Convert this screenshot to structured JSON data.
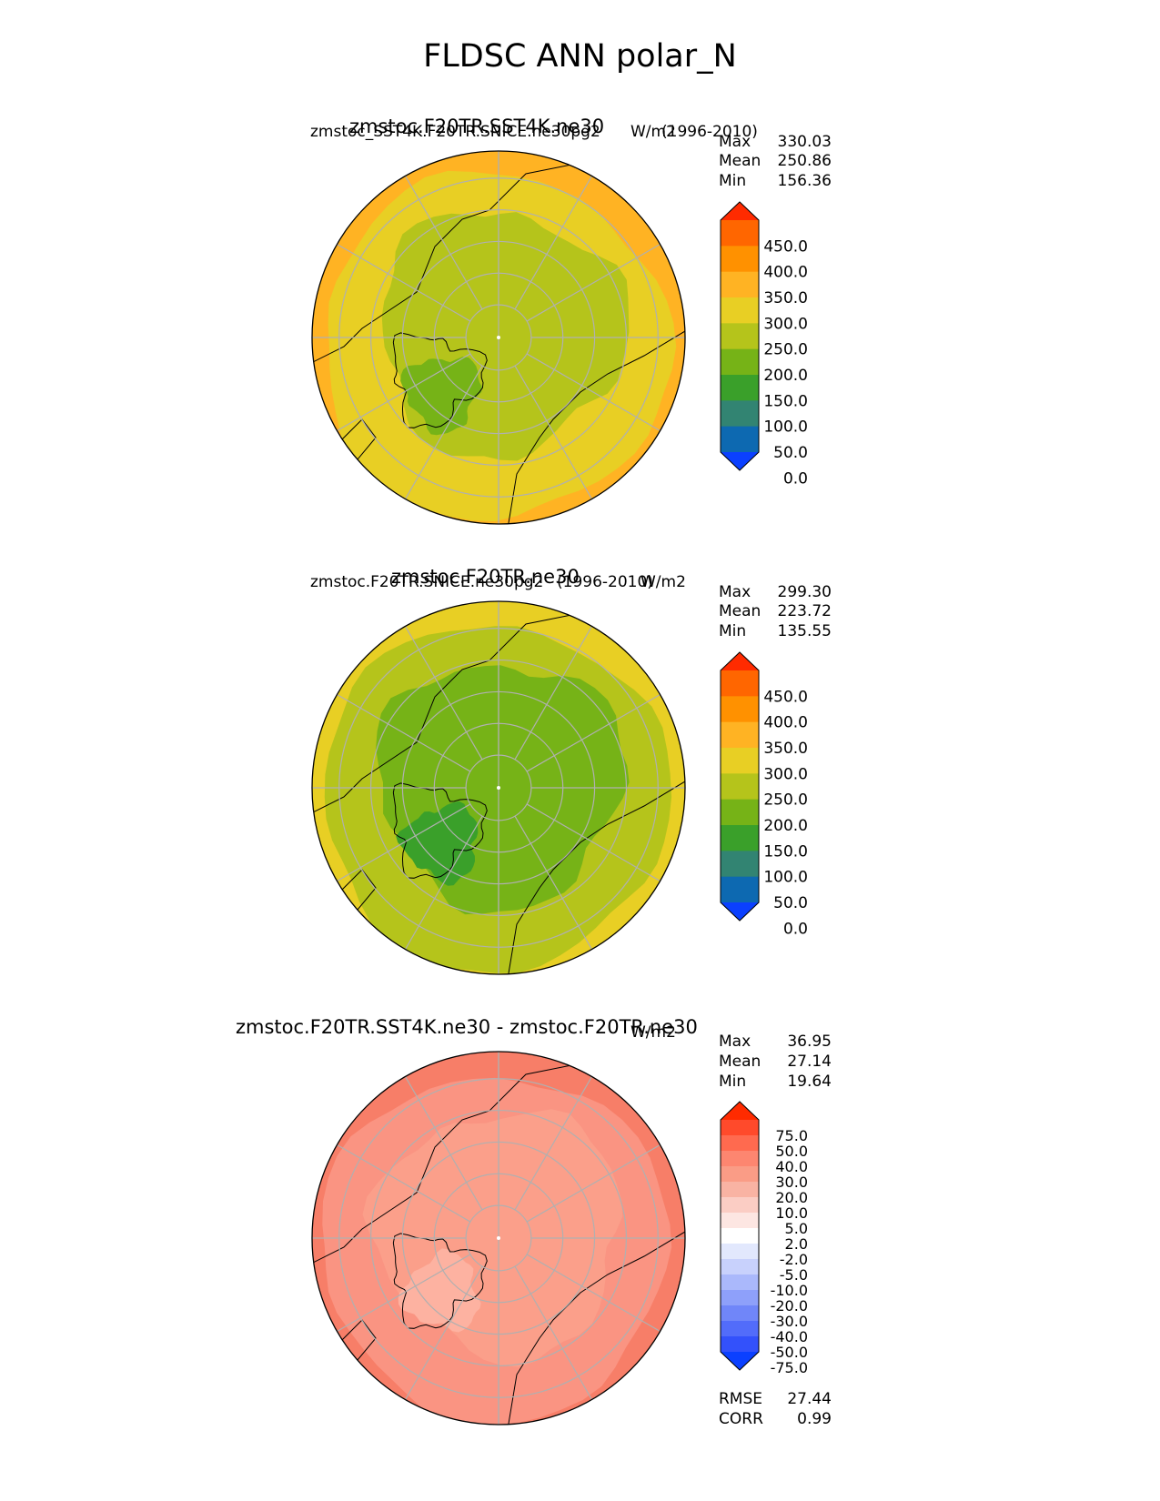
{
  "figure": {
    "title": "FLDSC ANN polar_N"
  },
  "chart_data": [
    {
      "type": "heatmap",
      "projection": "north-polar-stereographic",
      "title": "zmstoc.F20TR.SST4K.ne30",
      "subtitle_left": "zmstoc_SST4K.F20TR.SNICE.ne30pg2",
      "subtitle_center": "W/m2",
      "subtitle_right": "(1996-2010)",
      "stats": {
        "max_label": "Max",
        "max": "330.03",
        "mean_label": "Mean",
        "mean": "250.86",
        "min_label": "Min",
        "min": "156.36"
      },
      "colorbar": {
        "ticks": [
          "450.0",
          "400.0",
          "350.0",
          "300.0",
          "250.0",
          "200.0",
          "150.0",
          "100.0",
          "50.0",
          "0.0"
        ],
        "colors": [
          "#ff2b00",
          "#ff6600",
          "#ff9100",
          "#ffb323",
          "#e8cf24",
          "#b5c41b",
          "#76b317",
          "#3aa02a",
          "#328472",
          "#0d69b1",
          "#0b40ff"
        ]
      },
      "field": {
        "polar_color": "#b5c41b",
        "mid_color": "#e8cf24",
        "outer_color": "#ffb323",
        "core_color": "#76b317"
      }
    },
    {
      "type": "heatmap",
      "projection": "north-polar-stereographic",
      "title": "zmstoc.F20TR.ne30",
      "subtitle_left": "zmstoc.F20TR.SNICE.ne30pg2",
      "subtitle_center": "W/m2",
      "subtitle_right": "(1996-2010)",
      "stats": {
        "max_label": "Max",
        "max": "299.30",
        "mean_label": "Mean",
        "mean": "223.72",
        "min_label": "Min",
        "min": "135.55"
      },
      "colorbar": {
        "ticks": [
          "450.0",
          "400.0",
          "350.0",
          "300.0",
          "250.0",
          "200.0",
          "150.0",
          "100.0",
          "50.0",
          "0.0"
        ],
        "colors": [
          "#ff2b00",
          "#ff6600",
          "#ff9100",
          "#ffb323",
          "#e8cf24",
          "#b5c41b",
          "#76b317",
          "#3aa02a",
          "#328472",
          "#0d69b1",
          "#0b40ff"
        ]
      },
      "field": {
        "polar_color": "#76b317",
        "mid_color": "#b5c41b",
        "outer_color": "#e8cf24",
        "core_color": "#3aa02a"
      }
    },
    {
      "type": "heatmap",
      "projection": "north-polar-stereographic",
      "title": "zmstoc.F20TR.SST4K.ne30 - zmstoc.F20TR.ne30",
      "subtitle_center": "W/m2",
      "stats": {
        "max_label": "Max",
        "max": "36.95",
        "mean_label": "Mean",
        "mean": "27.14",
        "min_label": "Min",
        "min": "19.64"
      },
      "extra_stats": {
        "rmse_label": "RMSE",
        "rmse": "27.44",
        "corr_label": "CORR",
        "corr": "0.99"
      },
      "colorbar": {
        "ticks": [
          "75.0",
          "50.0",
          "40.0",
          "30.0",
          "20.0",
          "10.0",
          "5.0",
          "2.0",
          "-2.0",
          "-5.0",
          "-10.0",
          "-20.0",
          "-30.0",
          "-40.0",
          "-50.0",
          "-75.0"
        ],
        "colors": [
          "#ff2b00",
          "#ff4a2b",
          "#ff6a4f",
          "#fd8670",
          "#fa9c86",
          "#f9b3a3",
          "#fbcdc4",
          "#fde6e2",
          "#ffffff",
          "#e2e8fd",
          "#c8d1fc",
          "#aab8fb",
          "#8ea0fa",
          "#7086f9",
          "#526cfa",
          "#3351fb",
          "#0b40ff"
        ]
      },
      "field": {
        "polar_color": "#fb9f8a",
        "mid_color": "#fa9482",
        "outer_color": "#f77e68",
        "core_color": "#fdb2a1"
      }
    }
  ]
}
